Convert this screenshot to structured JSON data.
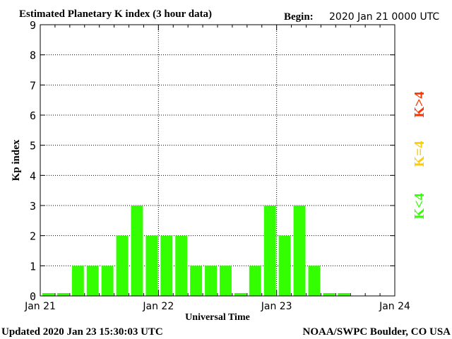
{
  "header": {
    "title": "Estimated Planetary K index (3 hour data)",
    "begin_label": "Begin:",
    "begin_value": "2020 Jan 21 0000 UTC"
  },
  "footer": {
    "updated": "Updated 2020 Jan 23 15:30:03 UTC",
    "source": "NOAA/SWPC Boulder, CO USA"
  },
  "legend": {
    "high": {
      "label": "K>4",
      "color": "#ff3300"
    },
    "mid": {
      "label": "K=4",
      "color": "#ffcc00"
    },
    "low": {
      "label": "K<4",
      "color": "#33ff00"
    }
  },
  "chart_data": {
    "type": "bar",
    "title": "Estimated Planetary K index (3 hour data)",
    "xlabel": "Universal Time",
    "ylabel": "Kp index",
    "ylim": [
      0,
      9
    ],
    "yticks": [
      0,
      1,
      2,
      3,
      4,
      5,
      6,
      7,
      8,
      9
    ],
    "xlim": [
      "2020-01-21 00:00",
      "2020-01-24 00:00"
    ],
    "xticks": [
      "Jan 21",
      "Jan 22",
      "Jan 23",
      "Jan 24"
    ],
    "interval_hours": 3,
    "categories": [
      "Jan 21 00",
      "Jan 21 03",
      "Jan 21 06",
      "Jan 21 09",
      "Jan 21 12",
      "Jan 21 15",
      "Jan 21 18",
      "Jan 21 21",
      "Jan 22 00",
      "Jan 22 03",
      "Jan 22 06",
      "Jan 22 09",
      "Jan 22 12",
      "Jan 22 15",
      "Jan 22 18",
      "Jan 22 21",
      "Jan 23 00",
      "Jan 23 03",
      "Jan 23 06",
      "Jan 23 09",
      "Jan 23 12"
    ],
    "values": [
      0,
      0,
      1,
      1,
      1,
      2,
      3,
      2,
      2,
      2,
      1,
      1,
      1,
      0,
      1,
      3,
      2,
      3,
      1,
      0,
      0
    ],
    "bar_color": "#33ff00",
    "grid": "dotted",
    "legend_position": "right"
  }
}
